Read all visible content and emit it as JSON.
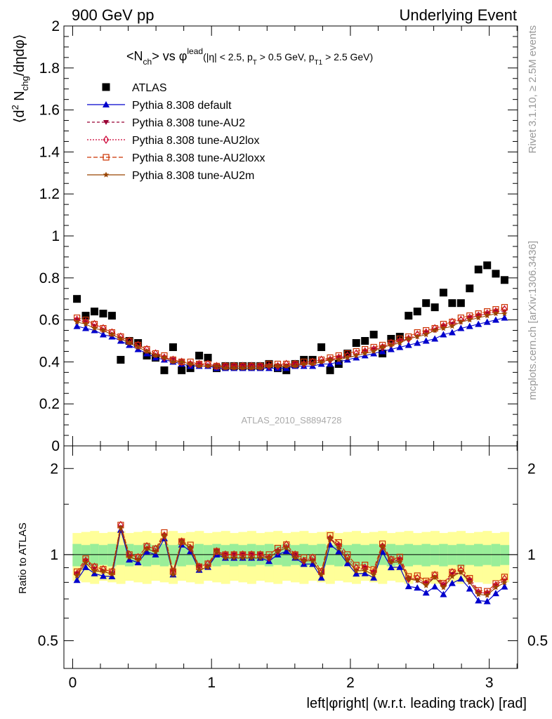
{
  "header": {
    "left": "900 GeV pp",
    "right": "Underlying Event"
  },
  "side_text": {
    "rivet": "Rivet 3.1.10, ≥ 2.5M events",
    "mcplots": "mcplots.cern.ch [arXiv:1306.3436]"
  },
  "plot_title": {
    "main": "<N_ch> vs φ^lead",
    "cuts": "(|η| < 2.5, p_T > 0.5 GeV, p_T1 > 2.5 GeV)"
  },
  "watermark": "ATLAS_2010_S8894728",
  "y_label": "⟨d² N_chg/dηdφ⟩",
  "x_label": "left|φright| (w.r.t. leading track) [rad]",
  "ratio_label": "Ratio to ATLAS",
  "legend": [
    {
      "name": "ATLAS",
      "color": "#000000",
      "marker": "square-filled"
    },
    {
      "name": "Pythia 8.308 default",
      "color": "#0000cc",
      "marker": "triangle-up"
    },
    {
      "name": "Pythia 8.308 tune-AU2",
      "color": "#990033",
      "marker": "triangle-down"
    },
    {
      "name": "Pythia 8.308 tune-AU2lox",
      "color": "#cc0033",
      "marker": "diamond-open"
    },
    {
      "name": "Pythia 8.308 tune-AU2loxx",
      "color": "#cc3300",
      "marker": "square-open"
    },
    {
      "name": "Pythia 8.308 tune-AU2m",
      "color": "#994400",
      "marker": "star"
    }
  ],
  "chart_data": {
    "type": "scatter",
    "main_panel": {
      "ylim": [
        0,
        2
      ],
      "yticks": [
        "0",
        "0.2",
        "0.4",
        "0.6",
        "0.8",
        "1",
        "1.2",
        "1.4",
        "1.6",
        "1.8",
        "2"
      ],
      "xlim": [
        -0.063,
        3.204
      ],
      "x": [
        0.031,
        0.094,
        0.157,
        0.22,
        0.283,
        0.346,
        0.408,
        0.471,
        0.534,
        0.597,
        0.66,
        0.723,
        0.785,
        0.848,
        0.911,
        0.974,
        1.037,
        1.1,
        1.162,
        1.225,
        1.288,
        1.351,
        1.414,
        1.477,
        1.539,
        1.602,
        1.665,
        1.728,
        1.791,
        1.854,
        1.916,
        1.979,
        2.042,
        2.105,
        2.168,
        2.231,
        2.293,
        2.356,
        2.419,
        2.482,
        2.545,
        2.608,
        2.67,
        2.733,
        2.796,
        2.859,
        2.922,
        2.985,
        3.047,
        3.11
      ],
      "series": [
        {
          "name": "ATLAS",
          "values": [
            0.7,
            0.62,
            0.64,
            0.63,
            0.62,
            0.41,
            0.5,
            0.49,
            0.43,
            0.42,
            0.36,
            0.47,
            0.36,
            0.37,
            0.43,
            0.42,
            0.37,
            0.38,
            0.38,
            0.38,
            0.38,
            0.38,
            0.39,
            0.37,
            0.36,
            0.39,
            0.41,
            0.41,
            0.47,
            0.36,
            0.39,
            0.44,
            0.49,
            0.5,
            0.53,
            0.44,
            0.51,
            0.52,
            0.62,
            0.64,
            0.68,
            0.66,
            0.73,
            0.68,
            0.68,
            0.75,
            0.84,
            0.86,
            0.82,
            0.79
          ]
        },
        {
          "name": "Pythia 8.308 default",
          "values": [
            0.57,
            0.56,
            0.55,
            0.53,
            0.52,
            0.5,
            0.48,
            0.46,
            0.44,
            0.42,
            0.41,
            0.4,
            0.39,
            0.38,
            0.38,
            0.38,
            0.37,
            0.37,
            0.37,
            0.37,
            0.37,
            0.37,
            0.37,
            0.37,
            0.37,
            0.38,
            0.38,
            0.38,
            0.39,
            0.39,
            0.4,
            0.41,
            0.42,
            0.43,
            0.44,
            0.45,
            0.46,
            0.47,
            0.48,
            0.49,
            0.5,
            0.51,
            0.53,
            0.54,
            0.56,
            0.57,
            0.58,
            0.59,
            0.6,
            0.61
          ]
        },
        {
          "name": "Pythia 8.308 tune-AU2",
          "values": [
            0.6,
            0.59,
            0.57,
            0.55,
            0.53,
            0.51,
            0.49,
            0.47,
            0.45,
            0.43,
            0.42,
            0.41,
            0.4,
            0.39,
            0.39,
            0.38,
            0.38,
            0.38,
            0.38,
            0.38,
            0.38,
            0.38,
            0.38,
            0.38,
            0.38,
            0.39,
            0.39,
            0.39,
            0.4,
            0.41,
            0.42,
            0.42,
            0.43,
            0.45,
            0.46,
            0.47,
            0.48,
            0.5,
            0.51,
            0.52,
            0.54,
            0.55,
            0.57,
            0.58,
            0.59,
            0.61,
            0.62,
            0.63,
            0.64,
            0.64
          ]
        },
        {
          "name": "Pythia 8.308 tune-AU2lox",
          "values": [
            0.6,
            0.59,
            0.58,
            0.56,
            0.54,
            0.52,
            0.5,
            0.48,
            0.46,
            0.44,
            0.42,
            0.41,
            0.4,
            0.39,
            0.39,
            0.39,
            0.38,
            0.38,
            0.38,
            0.38,
            0.38,
            0.38,
            0.38,
            0.38,
            0.39,
            0.39,
            0.39,
            0.4,
            0.41,
            0.41,
            0.42,
            0.43,
            0.44,
            0.45,
            0.46,
            0.47,
            0.49,
            0.5,
            0.51,
            0.53,
            0.54,
            0.56,
            0.57,
            0.59,
            0.6,
            0.61,
            0.62,
            0.63,
            0.64,
            0.65
          ]
        },
        {
          "name": "Pythia 8.308 tune-AU2loxx",
          "values": [
            0.61,
            0.6,
            0.58,
            0.56,
            0.54,
            0.52,
            0.5,
            0.48,
            0.46,
            0.44,
            0.43,
            0.41,
            0.4,
            0.4,
            0.39,
            0.39,
            0.38,
            0.38,
            0.38,
            0.38,
            0.38,
            0.38,
            0.39,
            0.39,
            0.39,
            0.39,
            0.4,
            0.4,
            0.41,
            0.42,
            0.43,
            0.44,
            0.45,
            0.46,
            0.47,
            0.48,
            0.49,
            0.51,
            0.52,
            0.54,
            0.55,
            0.56,
            0.58,
            0.59,
            0.61,
            0.62,
            0.63,
            0.64,
            0.65,
            0.66
          ]
        },
        {
          "name": "Pythia 8.308 tune-AU2m",
          "values": [
            0.59,
            0.58,
            0.56,
            0.55,
            0.53,
            0.51,
            0.49,
            0.47,
            0.45,
            0.43,
            0.42,
            0.4,
            0.4,
            0.39,
            0.38,
            0.38,
            0.38,
            0.37,
            0.37,
            0.37,
            0.37,
            0.37,
            0.38,
            0.38,
            0.38,
            0.38,
            0.39,
            0.39,
            0.4,
            0.41,
            0.41,
            0.42,
            0.43,
            0.44,
            0.45,
            0.47,
            0.48,
            0.49,
            0.51,
            0.52,
            0.53,
            0.55,
            0.56,
            0.57,
            0.59,
            0.6,
            0.61,
            0.62,
            0.63,
            0.63
          ]
        }
      ]
    },
    "ratio_panel": {
      "ylim": [
        0.4,
        2.4
      ],
      "log_scale": true,
      "yticks": [
        "0.5",
        "1",
        "2"
      ],
      "xticks": [
        "0",
        "1",
        "2",
        "3"
      ],
      "band_inner": 0.08,
      "band_outer": 0.19
    },
    "xlabel": "left|φright| (w.r.t. leading track) [rad]",
    "ylabel": "⟨d² N_chg/dηdφ⟩",
    "grid": false,
    "legend_position": "top-left"
  }
}
